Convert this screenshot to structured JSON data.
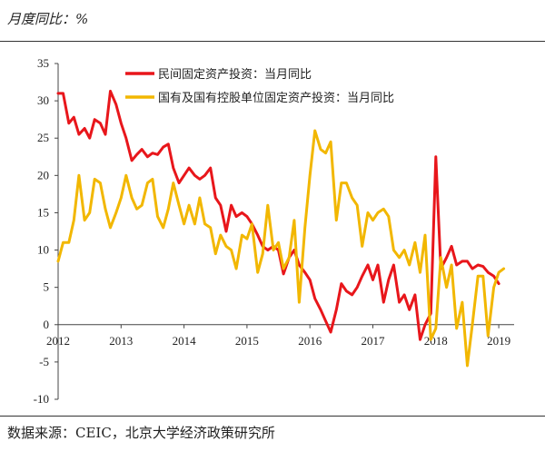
{
  "header": {
    "unit_label": "月度同比：%"
  },
  "footer": {
    "source": "数据来源：CEIC，北京大学经济政策研究所"
  },
  "chart_data": {
    "type": "line",
    "title": "",
    "xlabel": "",
    "ylabel": "",
    "ylim": [
      -10,
      35
    ],
    "yticks": [
      -10,
      -5,
      0,
      5,
      10,
      15,
      20,
      25,
      30,
      35
    ],
    "xlim": [
      2012,
      2019.25
    ],
    "xticks": [
      "2012",
      "2013",
      "2014",
      "2015",
      "2016",
      "2017",
      "2018",
      "2019"
    ],
    "legend_position": "top",
    "series": [
      {
        "name": "民间固定资产投资：当月同比",
        "color": "#e8161b",
        "points": [
          [
            2012.0,
            31
          ],
          [
            2012.08,
            31
          ],
          [
            2012.17,
            27
          ],
          [
            2012.25,
            27.8
          ],
          [
            2012.33,
            25.5
          ],
          [
            2012.42,
            26.3
          ],
          [
            2012.5,
            25
          ],
          [
            2012.58,
            27.5
          ],
          [
            2012.67,
            27
          ],
          [
            2012.75,
            25.5
          ],
          [
            2012.83,
            31.3
          ],
          [
            2012.92,
            29.5
          ],
          [
            2013.0,
            27
          ],
          [
            2013.08,
            25
          ],
          [
            2013.17,
            22
          ],
          [
            2013.25,
            22.8
          ],
          [
            2013.33,
            23.5
          ],
          [
            2013.42,
            22.5
          ],
          [
            2013.5,
            23
          ],
          [
            2013.58,
            22.8
          ],
          [
            2013.67,
            23.8
          ],
          [
            2013.75,
            24.2
          ],
          [
            2013.83,
            21
          ],
          [
            2013.92,
            19
          ],
          [
            2014.0,
            20
          ],
          [
            2014.08,
            21
          ],
          [
            2014.17,
            20
          ],
          [
            2014.25,
            19.5
          ],
          [
            2014.33,
            20
          ],
          [
            2014.42,
            21
          ],
          [
            2014.5,
            17
          ],
          [
            2014.58,
            16
          ],
          [
            2014.67,
            12.5
          ],
          [
            2014.75,
            16
          ],
          [
            2014.83,
            14.5
          ],
          [
            2014.92,
            15
          ],
          [
            2015.0,
            14.5
          ],
          [
            2015.08,
            13.5
          ],
          [
            2015.17,
            12
          ],
          [
            2015.25,
            10.5
          ],
          [
            2015.33,
            10
          ],
          [
            2015.42,
            10.5
          ],
          [
            2015.5,
            10
          ],
          [
            2015.58,
            6.8
          ],
          [
            2015.67,
            9
          ],
          [
            2015.75,
            10
          ],
          [
            2015.83,
            8
          ],
          [
            2015.92,
            7
          ],
          [
            2016.0,
            6
          ],
          [
            2016.08,
            3.5
          ],
          [
            2016.17,
            2
          ],
          [
            2016.25,
            0.5
          ],
          [
            2016.33,
            -1
          ],
          [
            2016.42,
            2
          ],
          [
            2016.5,
            5.5
          ],
          [
            2016.58,
            4.5
          ],
          [
            2016.67,
            4
          ],
          [
            2016.75,
            5
          ],
          [
            2016.83,
            6.5
          ],
          [
            2016.92,
            8
          ],
          [
            2017.0,
            6
          ],
          [
            2017.08,
            8
          ],
          [
            2017.17,
            3
          ],
          [
            2017.25,
            6
          ],
          [
            2017.33,
            8
          ],
          [
            2017.42,
            3
          ],
          [
            2017.5,
            4
          ],
          [
            2017.58,
            2
          ],
          [
            2017.67,
            4
          ],
          [
            2017.75,
            -2
          ],
          [
            2017.83,
            0
          ],
          [
            2017.92,
            1.5
          ],
          [
            2018.0,
            22.5
          ],
          [
            2018.08,
            7.5
          ],
          [
            2018.17,
            9
          ],
          [
            2018.25,
            10.5
          ],
          [
            2018.33,
            8
          ],
          [
            2018.42,
            8.5
          ],
          [
            2018.5,
            8.5
          ],
          [
            2018.58,
            7.5
          ],
          [
            2018.67,
            8
          ],
          [
            2018.75,
            7.8
          ],
          [
            2018.83,
            7
          ],
          [
            2018.92,
            6.5
          ],
          [
            2019.0,
            5.5
          ]
        ]
      },
      {
        "name": "国有及国有控股单位固定资产投资：当月同比",
        "color": "#f2b700",
        "points": [
          [
            2012.0,
            8.5
          ],
          [
            2012.08,
            11
          ],
          [
            2012.17,
            11
          ],
          [
            2012.25,
            14
          ],
          [
            2012.33,
            20
          ],
          [
            2012.42,
            14
          ],
          [
            2012.5,
            15
          ],
          [
            2012.58,
            19.5
          ],
          [
            2012.67,
            19
          ],
          [
            2012.75,
            15.5
          ],
          [
            2012.83,
            13
          ],
          [
            2012.92,
            15
          ],
          [
            2013.0,
            17
          ],
          [
            2013.08,
            20
          ],
          [
            2013.17,
            17
          ],
          [
            2013.25,
            15.5
          ],
          [
            2013.33,
            16
          ],
          [
            2013.42,
            19
          ],
          [
            2013.5,
            19.5
          ],
          [
            2013.58,
            14.5
          ],
          [
            2013.67,
            13
          ],
          [
            2013.75,
            15.5
          ],
          [
            2013.83,
            19
          ],
          [
            2013.92,
            16
          ],
          [
            2014.0,
            13.5
          ],
          [
            2014.08,
            16
          ],
          [
            2014.17,
            13.5
          ],
          [
            2014.25,
            17
          ],
          [
            2014.33,
            13.5
          ],
          [
            2014.42,
            13
          ],
          [
            2014.5,
            9.5
          ],
          [
            2014.58,
            12
          ],
          [
            2014.67,
            10.5
          ],
          [
            2014.75,
            10
          ],
          [
            2014.83,
            7.5
          ],
          [
            2014.92,
            12
          ],
          [
            2015.0,
            11.5
          ],
          [
            2015.08,
            13.5
          ],
          [
            2015.17,
            7
          ],
          [
            2015.25,
            9.5
          ],
          [
            2015.33,
            16
          ],
          [
            2015.42,
            10
          ],
          [
            2015.5,
            11
          ],
          [
            2015.58,
            7.5
          ],
          [
            2015.67,
            9
          ],
          [
            2015.75,
            14
          ],
          [
            2015.83,
            3
          ],
          [
            2015.92,
            13
          ],
          [
            2016.0,
            20
          ],
          [
            2016.08,
            26
          ],
          [
            2016.17,
            23.5
          ],
          [
            2016.25,
            23
          ],
          [
            2016.33,
            24.5
          ],
          [
            2016.42,
            14
          ],
          [
            2016.5,
            19
          ],
          [
            2016.58,
            19
          ],
          [
            2016.67,
            17
          ],
          [
            2016.75,
            16
          ],
          [
            2016.83,
            10.5
          ],
          [
            2016.92,
            15
          ],
          [
            2017.0,
            14
          ],
          [
            2017.08,
            15
          ],
          [
            2017.17,
            15.5
          ],
          [
            2017.25,
            14.5
          ],
          [
            2017.33,
            10
          ],
          [
            2017.42,
            9
          ],
          [
            2017.5,
            10
          ],
          [
            2017.58,
            8
          ],
          [
            2017.67,
            11
          ],
          [
            2017.75,
            7
          ],
          [
            2017.83,
            12
          ],
          [
            2017.92,
            -2
          ],
          [
            2018.0,
            -0.5
          ],
          [
            2018.08,
            9
          ],
          [
            2018.17,
            5
          ],
          [
            2018.25,
            8
          ],
          [
            2018.33,
            -0.5
          ],
          [
            2018.42,
            3
          ],
          [
            2018.5,
            -5.5
          ],
          [
            2018.58,
            0
          ],
          [
            2018.67,
            6.5
          ],
          [
            2018.75,
            6.5
          ],
          [
            2018.83,
            -1.5
          ],
          [
            2018.92,
            5
          ],
          [
            2019.0,
            7
          ],
          [
            2019.08,
            7.5
          ]
        ]
      }
    ]
  }
}
